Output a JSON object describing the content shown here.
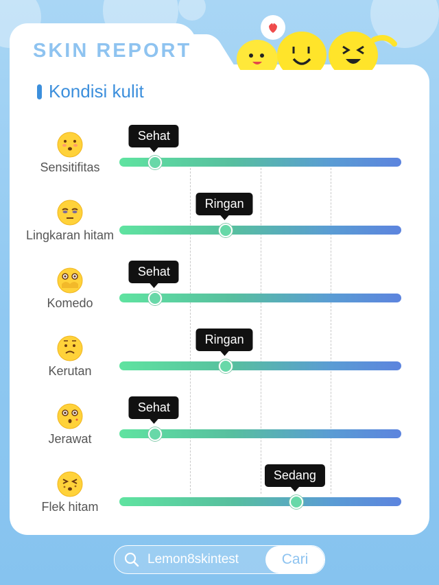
{
  "header": {
    "title": "SKIN REPORT"
  },
  "section": {
    "title": "Kondisi kulit"
  },
  "rows": [
    {
      "label": "Sensitifitas",
      "level_label": "Sehat",
      "level_pct": 12.5,
      "icon": "pout-face-icon"
    },
    {
      "label": "Lingkaran hitam",
      "level_label": "Ringan",
      "level_pct": 37.5,
      "icon": "tired-eyes-face-icon"
    },
    {
      "label": "Komedo",
      "level_label": "Sehat",
      "level_pct": 12.5,
      "icon": "covered-face-icon"
    },
    {
      "label": "Kerutan",
      "level_label": "Ringan",
      "level_pct": 37.5,
      "icon": "wrinkled-face-icon"
    },
    {
      "label": "Jerawat",
      "level_label": "Sehat",
      "level_pct": 12.5,
      "icon": "surprised-face-icon"
    },
    {
      "label": "Flek hitam",
      "level_label": "Sedang",
      "level_pct": 62.5,
      "icon": "squint-face-icon"
    }
  ],
  "search": {
    "query": "Lemon8skintest",
    "button_label": "Cari"
  },
  "colors": {
    "accent_blue": "#3c8fdc",
    "title_blue": "#8ec3f0",
    "track_start": "#5fe3a0",
    "track_end": "#5c84de",
    "emoji_yellow": "#ffd23a"
  }
}
